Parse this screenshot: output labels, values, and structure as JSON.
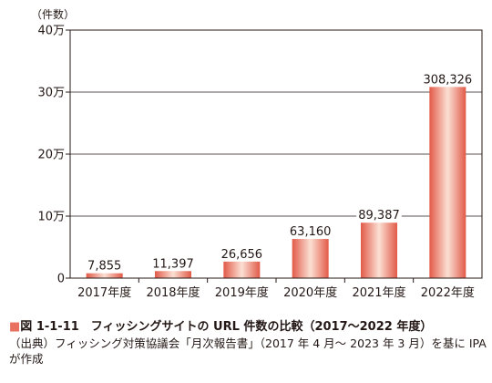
{
  "chart_data": {
    "type": "bar",
    "unit_label": "（件数）",
    "categories": [
      "2017年度",
      "2018年度",
      "2019年度",
      "2020年度",
      "2021年度",
      "2022年度"
    ],
    "values": [
      7855,
      11397,
      26656,
      63160,
      89387,
      308326
    ],
    "value_labels": [
      "7,855",
      "11,397",
      "26,656",
      "63,160",
      "89,387",
      "308,326"
    ],
    "yticks": [
      {
        "value": 0,
        "label": "0"
      },
      {
        "value": 100000,
        "label": "10万"
      },
      {
        "value": 200000,
        "label": "20万"
      },
      {
        "value": 300000,
        "label": "30万"
      },
      {
        "value": 400000,
        "label": "40万"
      }
    ],
    "ylim": [
      0,
      400000
    ],
    "grid": true,
    "bar_color": "#e8715f"
  },
  "caption": {
    "marker": "■",
    "title": "図 1-1-11　フィッシングサイトの URL 件数の比較（2017～2022 年度）",
    "source": "（出典）フィッシング対策協議会「月次報告書」（2017 年 4 月～ 2023 年 3 月）を基に IPA が作成"
  }
}
